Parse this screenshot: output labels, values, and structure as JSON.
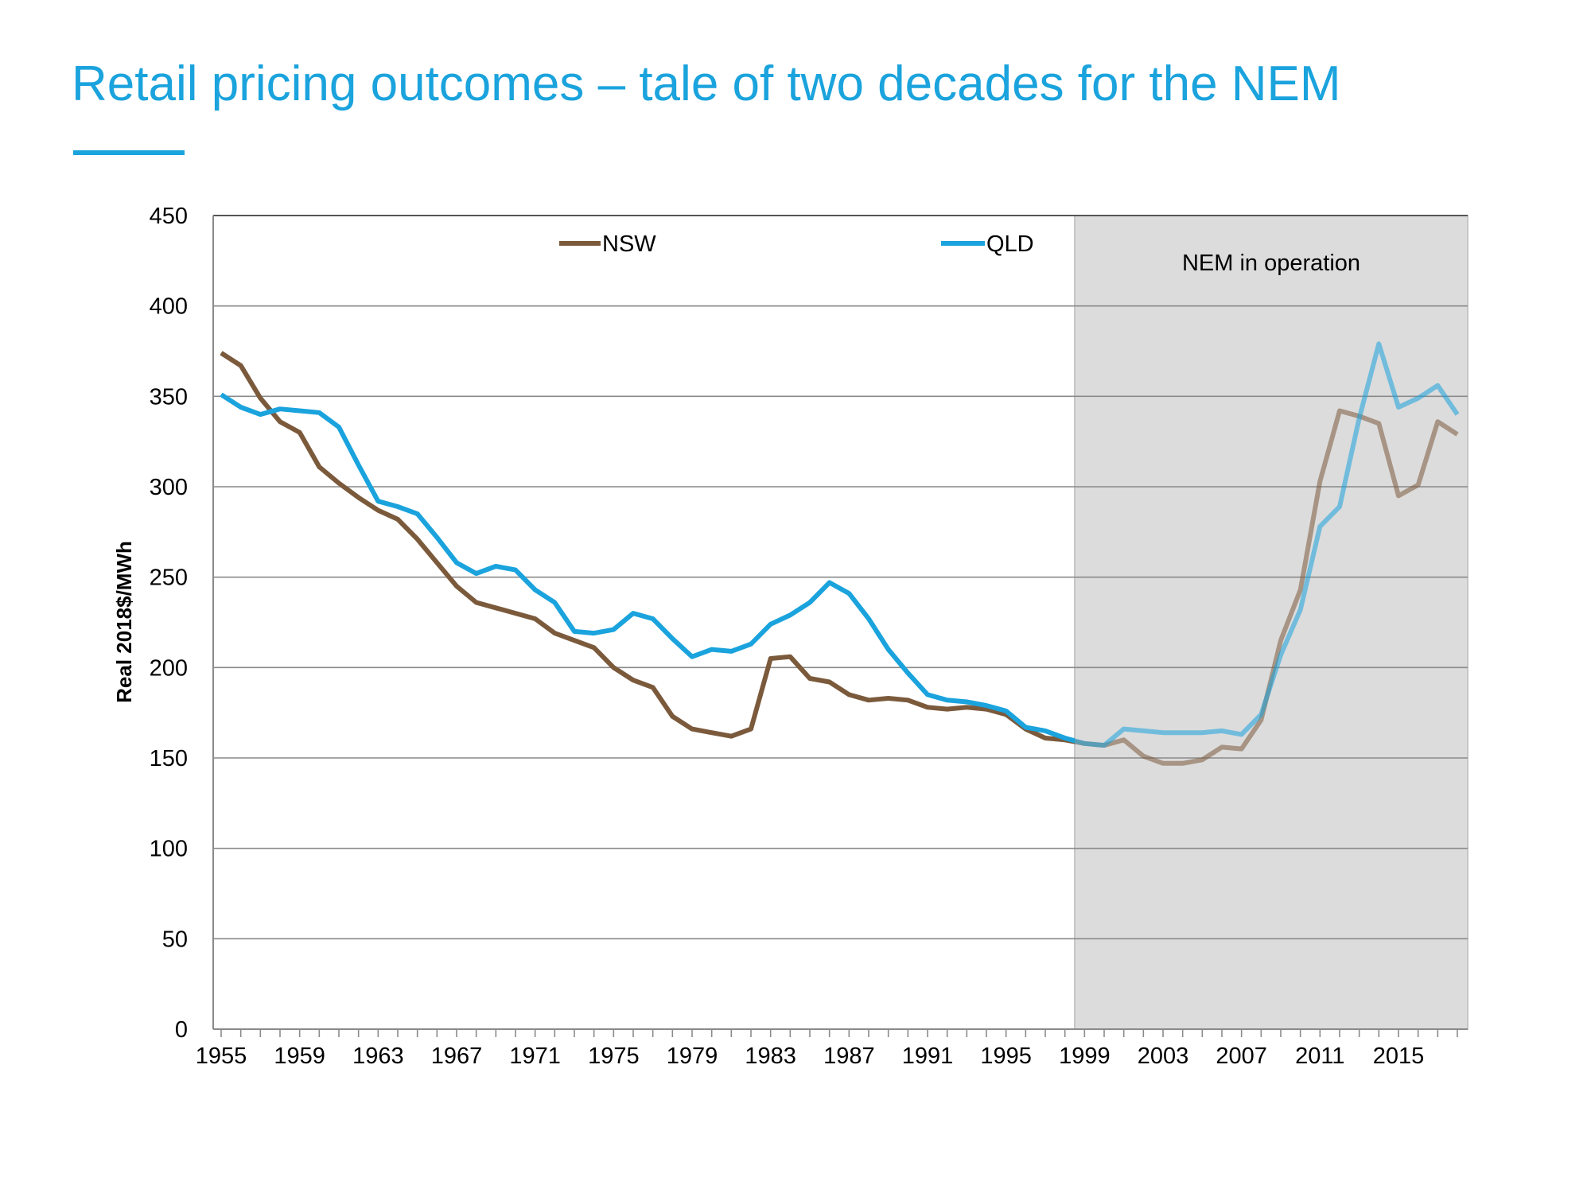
{
  "title": "Retail pricing outcomes – tale of two decades for the NEM",
  "colors": {
    "accent": "#1aa3dd",
    "nsw": "#7b5a3c",
    "qld": "#1aa3dd",
    "shade": "#dcdcdc"
  },
  "chart_data": {
    "type": "line",
    "title": "",
    "xlabel": "",
    "ylabel": "Real 2018$/MWh",
    "ylim": [
      0,
      450
    ],
    "y_ticks": [
      "0",
      "50",
      "100",
      "150",
      "200",
      "250",
      "300",
      "350",
      "400",
      "450"
    ],
    "x_tick_labels": [
      "1955",
      "1959",
      "1963",
      "1967",
      "1971",
      "1975",
      "1979",
      "1983",
      "1987",
      "1991",
      "1995",
      "1999",
      "2003",
      "2007",
      "2011",
      "2015"
    ],
    "x_range": [
      1955,
      2018
    ],
    "grid": true,
    "legend_position": "top",
    "shaded_region": {
      "label": "NEM in operation",
      "from": 1998.5,
      "to": 2018.5
    },
    "x": [
      1955,
      1956,
      1957,
      1958,
      1959,
      1960,
      1961,
      1962,
      1963,
      1964,
      1965,
      1966,
      1967,
      1968,
      1969,
      1970,
      1971,
      1972,
      1973,
      1974,
      1975,
      1976,
      1977,
      1978,
      1979,
      1980,
      1981,
      1982,
      1983,
      1984,
      1985,
      1986,
      1987,
      1988,
      1989,
      1990,
      1991,
      1992,
      1993,
      1994,
      1995,
      1996,
      1997,
      1998,
      1999,
      2000,
      2001,
      2002,
      2003,
      2004,
      2005,
      2006,
      2007,
      2008,
      2009,
      2010,
      2011,
      2012,
      2013,
      2014,
      2015,
      2016,
      2017,
      2018
    ],
    "series": [
      {
        "name": "NSW",
        "values": [
          374,
          367,
          349,
          336,
          330,
          311,
          302,
          294,
          287,
          282,
          271,
          258,
          245,
          236,
          233,
          230,
          227,
          219,
          215,
          211,
          200,
          193,
          189,
          173,
          166,
          164,
          162,
          166,
          205,
          206,
          194,
          192,
          185,
          182,
          183,
          182,
          178,
          177,
          178,
          177,
          174,
          166,
          161,
          160,
          158,
          157,
          160,
          151,
          147,
          147,
          149,
          156,
          155,
          171,
          215,
          243,
          303,
          342,
          339,
          335,
          295,
          301,
          336,
          329
        ]
      },
      {
        "name": "QLD",
        "values": [
          351,
          344,
          340,
          343,
          342,
          341,
          333,
          312,
          292,
          289,
          285,
          272,
          258,
          252,
          256,
          254,
          243,
          236,
          220,
          219,
          221,
          230,
          227,
          216,
          206,
          210,
          209,
          213,
          224,
          229,
          236,
          247,
          241,
          227,
          210,
          197,
          185,
          182,
          181,
          179,
          176,
          167,
          165,
          161,
          158,
          157,
          166,
          165,
          164,
          164,
          164,
          165,
          163,
          174,
          207,
          232,
          278,
          289,
          338,
          379,
          344,
          349,
          356,
          340
        ]
      }
    ]
  }
}
